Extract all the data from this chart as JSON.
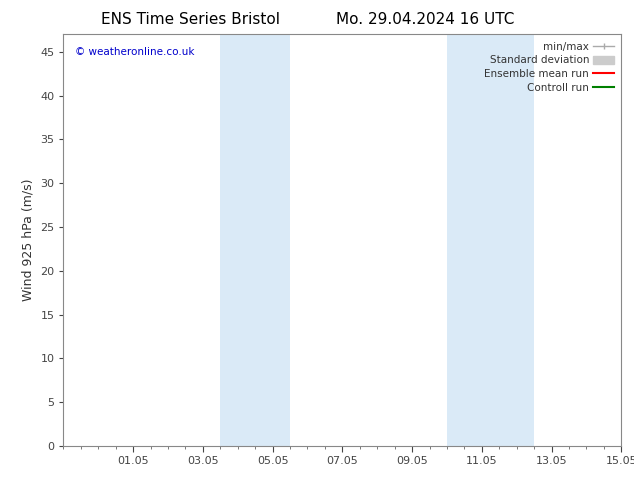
{
  "title_left": "ENS Time Series Bristol",
  "title_right": "Mo. 29.04.2024 16 UTC",
  "ylabel": "Wind 925 hPa (m/s)",
  "watermark": "© weatheronline.co.uk",
  "watermark_color": "#0000cc",
  "xmin": 0,
  "xmax": 16,
  "ymin": 0,
  "ymax": 47,
  "yticks": [
    0,
    5,
    10,
    15,
    20,
    25,
    30,
    35,
    40,
    45
  ],
  "xtick_labels": [
    "01.05",
    "03.05",
    "05.05",
    "07.05",
    "09.05",
    "11.05",
    "13.05",
    "15.05"
  ],
  "xtick_positions": [
    2,
    4,
    6,
    8,
    10,
    12,
    14,
    16
  ],
  "background_color": "#ffffff",
  "shaded_bands": [
    {
      "xstart": 4.5,
      "xend": 6.5
    },
    {
      "xstart": 11.0,
      "xend": 13.5
    }
  ],
  "shade_color": "#daeaf7",
  "legend_labels": [
    "min/max",
    "Standard deviation",
    "Ensemble mean run",
    "Controll run"
  ],
  "legend_colors": [
    "#aaaaaa",
    "#cccccc",
    "#ff0000",
    "#008000"
  ],
  "spine_color": "#888888",
  "tick_color": "#444444",
  "title_fontsize": 11,
  "label_fontsize": 9,
  "tick_fontsize": 8
}
